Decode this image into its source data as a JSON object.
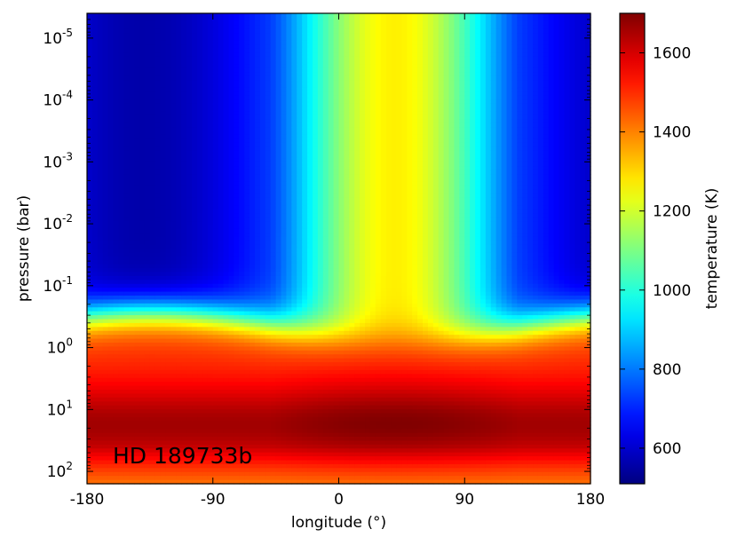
{
  "chart_data": {
    "type": "heatmap",
    "title": "",
    "annotation": "HD 189733b",
    "xlabel": "longitude (°)",
    "ylabel": "pressure (bar)",
    "colorbar_label": "temperature (K)",
    "colormap": "jet",
    "x_range": [
      -180,
      180
    ],
    "y_range_log10_bar": [
      -5.4,
      2.2
    ],
    "y_axis": "log, inverted (low pressure at top)",
    "z_range": [
      510,
      1700
    ],
    "x_ticks": [
      {
        "value": -180,
        "label": "-180"
      },
      {
        "value": -90,
        "label": "-90"
      },
      {
        "value": 0,
        "label": "0"
      },
      {
        "value": 90,
        "label": "90"
      },
      {
        "value": 180,
        "label": "180"
      }
    ],
    "y_ticks": [
      {
        "exp": -5,
        "base": "10",
        "sup": "-5"
      },
      {
        "exp": -4,
        "base": "10",
        "sup": "-4"
      },
      {
        "exp": -3,
        "base": "10",
        "sup": "-3"
      },
      {
        "exp": -2,
        "base": "10",
        "sup": "-2"
      },
      {
        "exp": -1,
        "base": "10",
        "sup": "-1"
      },
      {
        "exp": 0,
        "base": "10",
        "sup": "0"
      },
      {
        "exp": 1,
        "base": "10",
        "sup": "1"
      },
      {
        "exp": 2,
        "base": "10",
        "sup": "2"
      }
    ],
    "colorbar_ticks": [
      {
        "value": 600,
        "label": "600"
      },
      {
        "value": 800,
        "label": "800"
      },
      {
        "value": 1000,
        "label": "1000"
      },
      {
        "value": 1200,
        "label": "1200"
      },
      {
        "value": 1400,
        "label": "1400"
      },
      {
        "value": 1600,
        "label": "1600"
      }
    ],
    "grid": false
  }
}
